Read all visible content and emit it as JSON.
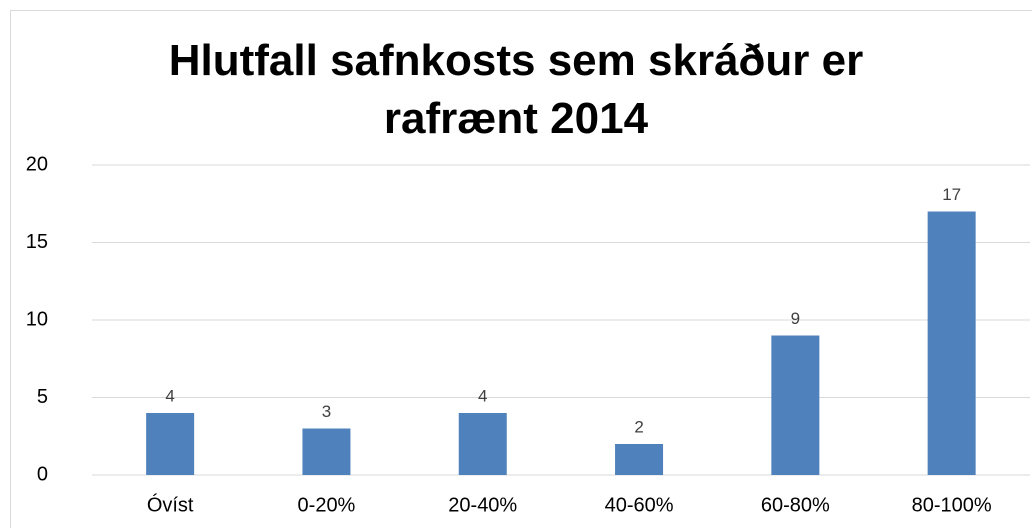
{
  "chart_data": {
    "type": "bar",
    "title": "Hlutfall safnkosts sem skráður er rafrænt 2014",
    "categories": [
      "Óvíst",
      "0-20%",
      "20-40%",
      "40-60%",
      "60-80%",
      "80-100%"
    ],
    "values": [
      4,
      3,
      4,
      2,
      9,
      17
    ],
    "color": "#4f81bd",
    "ylim": [
      0,
      20
    ],
    "yticks": [
      0,
      5,
      10,
      15,
      20
    ],
    "grid": true,
    "data_labels": true
  }
}
